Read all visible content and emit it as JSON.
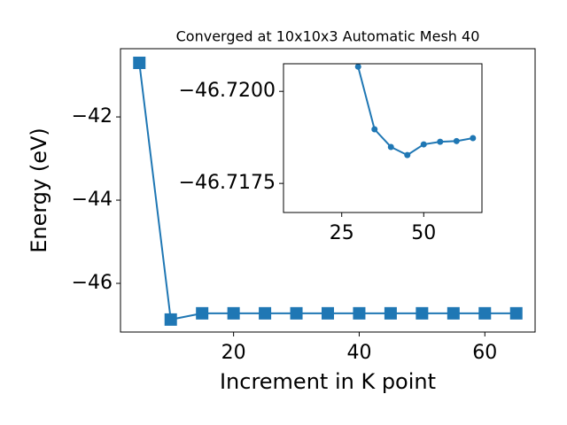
{
  "chart_data": [
    {
      "type": "line",
      "title": "Converged at 10x10x3 Automatic Mesh 40",
      "xlabel": "Increment in K point",
      "ylabel": "Energy (eV)",
      "marker": "square",
      "color": "#1f77b4",
      "x": [
        5,
        10,
        15,
        20,
        25,
        30,
        35,
        40,
        45,
        50,
        55,
        60,
        65
      ],
      "values": [
        -40.7,
        -46.87,
        -46.72,
        -46.72,
        -46.72,
        -46.72,
        -46.72,
        -46.72,
        -46.72,
        -46.72,
        -46.72,
        -46.72,
        -46.72
      ],
      "xlim": [
        2,
        68
      ],
      "ylim": [
        -47.17,
        -40.36
      ],
      "xticks": [
        20,
        40,
        60
      ],
      "yticks": [
        {
          "value": -42,
          "label": "−42"
        },
        {
          "value": -44,
          "label": "−44"
        },
        {
          "value": -46,
          "label": "−46"
        }
      ]
    },
    {
      "type": "line",
      "marker": "circle",
      "color": "#1f77b4",
      "x": [
        30,
        35,
        40,
        45,
        50,
        55,
        60,
        65
      ],
      "values": [
        -46.72067,
        -46.71897,
        -46.71849,
        -46.71827,
        -46.71856,
        -46.71863,
        -46.71865,
        -46.71873
      ],
      "xlim": [
        7.25,
        67.75
      ],
      "ylim": [
        -46.71671,
        -46.72075
      ],
      "xticks": [
        25,
        50
      ],
      "yticks": [
        {
          "value": -46.72,
          "label": "−46.7200"
        },
        {
          "value": -46.7175,
          "label": "−46.7175"
        }
      ]
    }
  ]
}
